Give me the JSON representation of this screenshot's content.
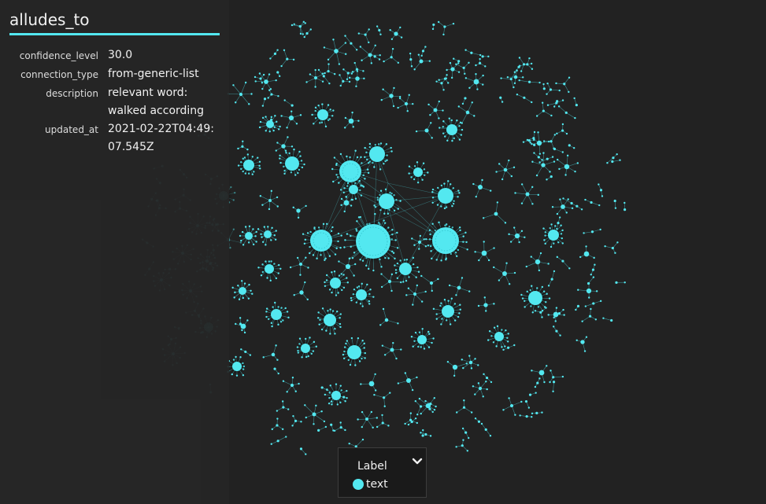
{
  "edge": {
    "title": "alludes_to",
    "properties": [
      {
        "key": "confidence_level",
        "value": "30.0"
      },
      {
        "key": "connection_type",
        "value": "from-generic-list"
      },
      {
        "key": "description",
        "value": "relevant word: walked according"
      },
      {
        "key": "updated_at",
        "value": "2021-02-22T04:49:07.545Z"
      }
    ]
  },
  "legend": {
    "title": "Label",
    "items": [
      {
        "label": "text",
        "color": "#53e8f0"
      }
    ]
  },
  "colors": {
    "background": "#222222",
    "panel": "#262626",
    "accent": "#53e8f0",
    "node": "#53e8f0"
  },
  "icons": {
    "legend_toggle": "chevron-down-icon"
  }
}
